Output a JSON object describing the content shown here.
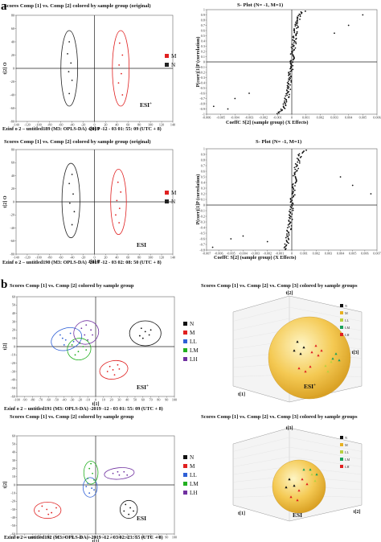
{
  "panel_labels": [
    "a",
    "b"
  ],
  "esi_label": "ESI",
  "chart_data": [
    {
      "type": "scatter",
      "id": "a1",
      "title": "Scores Comp [1] vs. Comp [2] colored by sample group (original)",
      "caption": "Ezinf o 2 – untitled189 (M3: OPLS-DA) -2019 -12 - 03 01: 55: 09 (UTC + 8)",
      "xlabel": "t[1] P",
      "ylabel": "t[2] O",
      "esi": "ESI+",
      "xlim": [
        -140,
        140
      ],
      "ylim": [
        -80,
        80
      ],
      "xticks": [
        -140,
        -120,
        -100,
        -80,
        -60,
        -40,
        -20,
        0,
        20,
        40,
        60,
        80,
        100,
        120,
        140
      ],
      "yticks": [
        -80,
        -60,
        -40,
        -20,
        0,
        20,
        40,
        60,
        80
      ],
      "legend": [
        "M",
        "N"
      ],
      "series": [
        {
          "name": "M",
          "color": "#e02020",
          "points": [
            [
              45,
              38
            ],
            [
              50,
              20
            ],
            [
              44,
              5
            ],
            [
              48,
              -8
            ],
            [
              43,
              -22
            ],
            [
              50,
              -40
            ]
          ]
        },
        {
          "name": "N",
          "color": "#222222",
          "points": [
            [
              -45,
              40
            ],
            [
              -48,
              22
            ],
            [
              -42,
              8
            ],
            [
              -46,
              -5
            ],
            [
              -40,
              -18
            ],
            [
              -45,
              -38
            ]
          ]
        }
      ],
      "ellipses": [
        {
          "color": "#e02020",
          "cx": 47,
          "cy": 0,
          "rx": 15,
          "ry": 57
        },
        {
          "color": "#222222",
          "cx": -45,
          "cy": 0,
          "rx": 15,
          "ry": 57
        }
      ]
    },
    {
      "type": "scatter",
      "id": "a2",
      "title": "S- Plot (N= -1, M=1)",
      "caption": "CoeffC S[2] (sample group) (X Effects)",
      "xlabel": "",
      "ylabel": "P(corr)[1]P (correlation)",
      "xlim": [
        -0.006,
        0.006
      ],
      "ylim": [
        -1,
        1
      ],
      "xticks": [
        -0.006,
        -0.005,
        -0.004,
        -0.003,
        -0.002,
        -0.001,
        0,
        0.001,
        0.002,
        0.003,
        0.004,
        0.005,
        0.006
      ],
      "yticks": [
        -1,
        -0.9,
        -0.8,
        -0.7,
        -0.6,
        -0.5,
        -0.4,
        -0.3,
        -0.2,
        -0.1,
        0,
        0.1,
        0.2,
        0.3,
        0.4,
        0.5,
        0.6,
        0.7,
        0.8,
        0.9,
        1
      ],
      "curve": {
        "k": 0.0012,
        "n": 140
      },
      "series": [
        {
          "color": "#111111",
          "points": [
            [
              -0.0055,
              -0.85
            ],
            [
              -0.0045,
              -0.9
            ],
            [
              -0.004,
              -0.7
            ],
            [
              -0.003,
              -0.6
            ],
            [
              0.003,
              0.55
            ],
            [
              0.004,
              0.7
            ],
            [
              0.005,
              0.9
            ]
          ]
        }
      ]
    },
    {
      "type": "scatter",
      "id": "a3",
      "title": "Scores Comp [1] vs. Comp [2] colored by sample group (original)",
      "caption": "Ezinf o 2 – untitled190 (M3: OPLS-DA) -2019 -12 - 03 02: 08: 50 (UTC + 8)",
      "xlabel": "t[1] P",
      "ylabel": "t[2] O",
      "esi": "ESI",
      "xlim": [
        -140,
        140
      ],
      "ylim": [
        -80,
        80
      ],
      "xticks": [
        -140,
        -120,
        -100,
        -80,
        -60,
        -40,
        -20,
        0,
        20,
        40,
        60,
        80,
        100,
        120,
        140
      ],
      "yticks": [
        -80,
        -60,
        -40,
        -20,
        0,
        20,
        40,
        60,
        80
      ],
      "legend": [
        "M",
        "N"
      ],
      "series": [
        {
          "name": "M",
          "color": "#e02020",
          "points": [
            [
              42,
              30
            ],
            [
              47,
              15
            ],
            [
              40,
              2
            ],
            [
              45,
              -10
            ],
            [
              38,
              -20
            ],
            [
              44,
              -32
            ]
          ]
        },
        {
          "name": "N",
          "color": "#222222",
          "points": [
            [
              -40,
              42
            ],
            [
              -45,
              28
            ],
            [
              -38,
              12
            ],
            [
              -44,
              -2
            ],
            [
              -36,
              -15
            ],
            [
              -40,
              -35
            ]
          ]
        }
      ],
      "ellipses": [
        {
          "color": "#e02020",
          "cx": 43,
          "cy": 0,
          "rx": 14,
          "ry": 50
        },
        {
          "color": "#222222",
          "cx": -42,
          "cy": 2,
          "rx": 16,
          "ry": 57
        }
      ]
    },
    {
      "type": "scatter",
      "id": "a4",
      "title": "S- Plot (N= -1, M=1)",
      "caption": "CoeffC S[2] (sample group) (X Effects)",
      "xlabel": "",
      "ylabel": "P(corr)[1]P (correlation)",
      "xlim": [
        -0.007,
        0.007
      ],
      "ylim": [
        -0.8,
        1
      ],
      "xticks": [
        -0.007,
        -0.006,
        -0.005,
        -0.004,
        -0.003,
        -0.002,
        -0.001,
        0,
        0.001,
        0.002,
        0.003,
        0.004,
        0.005,
        0.006,
        0.007
      ],
      "yticks": [
        -0.8,
        -0.7,
        -0.6,
        -0.5,
        -0.4,
        -0.3,
        -0.2,
        -0.1,
        0,
        0.1,
        0.2,
        0.3,
        0.4,
        0.5,
        0.6,
        0.7,
        0.8,
        0.9,
        1
      ],
      "curve": {
        "k": 0.0014,
        "n": 110
      },
      "series": [
        {
          "color": "#111111",
          "points": [
            [
              -0.0065,
              -0.75
            ],
            [
              -0.005,
              -0.6
            ],
            [
              -0.004,
              -0.55
            ],
            [
              -0.002,
              -0.65
            ],
            [
              0.004,
              0.5
            ],
            [
              0.005,
              0.35
            ],
            [
              0.0065,
              0.2
            ]
          ]
        }
      ]
    },
    {
      "type": "scatter",
      "id": "b1",
      "title": "Scores Comp [1] vs. Comp [2] colored by sample group",
      "caption": "Ezinf o 2 – untitled191 (M3: OPLS-DA) -2019 -12 - 03 01: 55: 09 (UTC + 8)",
      "xlabel": "t[1]",
      "ylabel": "t[2]",
      "esi": "ESI+",
      "xlim": [
        -100,
        100
      ],
      "ylim": [
        -60,
        60
      ],
      "xticks": [
        -100,
        -90,
        -80,
        -70,
        -60,
        -50,
        -40,
        -30,
        -20,
        -10,
        0,
        10,
        20,
        30,
        40,
        50,
        60,
        70,
        80,
        90,
        100
      ],
      "yticks": [
        -60,
        -50,
        -40,
        -30,
        -20,
        -10,
        0,
        10,
        20,
        30,
        40,
        50,
        60
      ],
      "legend": [
        "N",
        "M",
        "LL",
        "LM",
        "LH"
      ],
      "series": [
        {
          "name": "N",
          "color": "#111111",
          "points": [
            [
              58,
              22
            ],
            [
              63,
              18
            ],
            [
              68,
              14
            ],
            [
              56,
              13
            ],
            [
              70,
              20
            ],
            [
              60,
              10
            ]
          ]
        },
        {
          "name": "M",
          "color": "#e02020",
          "points": [
            [
              18,
              -24
            ],
            [
              22,
              -28
            ],
            [
              28,
              -22
            ],
            [
              15,
              -30
            ],
            [
              24,
              -34
            ],
            [
              30,
              -27
            ]
          ]
        },
        {
          "name": "LL",
          "color": "#2e5fd6",
          "points": [
            [
              -45,
              14
            ],
            [
              -38,
              8
            ],
            [
              -32,
              16
            ],
            [
              -40,
              2
            ],
            [
              -28,
              6
            ],
            [
              -42,
              10
            ]
          ]
        },
        {
          "name": "LM",
          "color": "#22b020",
          "points": [
            [
              -30,
              2
            ],
            [
              -22,
              -6
            ],
            [
              -16,
              0
            ],
            [
              -26,
              -10
            ],
            [
              -12,
              -4
            ],
            [
              -20,
              4
            ]
          ]
        },
        {
          "name": "LH",
          "color": "#7030a0",
          "points": [
            [
              -18,
              22
            ],
            [
              -12,
              26
            ],
            [
              -6,
              20
            ],
            [
              -14,
              14
            ],
            [
              -4,
              14
            ],
            [
              -10,
              8
            ]
          ]
        }
      ],
      "ellipses": [
        {
          "color": "#111111",
          "cx": 63,
          "cy": 16,
          "rx": 20,
          "ry": 15,
          "rot": 0
        },
        {
          "color": "#e02020",
          "cx": 23,
          "cy": -28,
          "rx": 18,
          "ry": 11,
          "rot": -10
        },
        {
          "color": "#2e5fd6",
          "cx": -37,
          "cy": 9,
          "rx": 20,
          "ry": 13,
          "rot": -20
        },
        {
          "color": "#22b020",
          "cx": -21,
          "cy": -3,
          "rx": 15,
          "ry": 13,
          "rot": -15
        },
        {
          "color": "#7030a0",
          "cx": -12,
          "cy": 17,
          "rx": 16,
          "ry": 14,
          "rot": -25
        }
      ]
    },
    {
      "type": "scatter",
      "id": "b2",
      "title": "Scores Comp [1] vs. Comp [2] colored by sample group",
      "caption": "Ezinf o 2 – untitled192 (M3: OPLS-DA) -2019 -12 - 03 02: 23: 55 (UTC + 8)",
      "xlabel": "t[1]",
      "ylabel": "t[2]",
      "esi": "ESI",
      "xlim": [
        -100,
        100
      ],
      "ylim": [
        -60,
        60
      ],
      "xticks": [
        -100,
        -90,
        -80,
        -70,
        -60,
        -50,
        -40,
        -30,
        -20,
        -10,
        0,
        10,
        20,
        30,
        40,
        50,
        60,
        70,
        80,
        90,
        100
      ],
      "yticks": [
        -60,
        -50,
        -40,
        -30,
        -20,
        -10,
        0,
        10,
        20,
        30,
        40,
        50,
        60
      ],
      "legend": [
        "N",
        "M",
        "LL",
        "LM",
        "LH"
      ],
      "series": [
        {
          "name": "N",
          "color": "#111111",
          "points": [
            [
              38,
              -24
            ],
            [
              44,
              -28
            ],
            [
              48,
              -32
            ],
            [
              36,
              -32
            ],
            [
              42,
              -36
            ]
          ]
        },
        {
          "name": "M",
          "color": "#e02020",
          "points": [
            [
              -68,
              -26
            ],
            [
              -62,
              -30
            ],
            [
              -56,
              -34
            ],
            [
              -50,
              -28
            ],
            [
              -72,
              -32
            ],
            [
              -60,
              -36
            ]
          ]
        },
        {
          "name": "LL",
          "color": "#2e5fd6",
          "points": [
            [
              -10,
              2
            ],
            [
              -5,
              -4
            ],
            [
              -8,
              -10
            ],
            [
              -2,
              -6
            ],
            [
              -12,
              -2
            ]
          ]
        },
        {
          "name": "LM",
          "color": "#22b020",
          "points": [
            [
              -8,
              20
            ],
            [
              -4,
              14
            ],
            [
              -10,
              8
            ],
            [
              -2,
              6
            ],
            [
              -6,
              26
            ]
          ]
        },
        {
          "name": "LH",
          "color": "#7030a0",
          "points": [
            [
              22,
              14
            ],
            [
              30,
              12
            ],
            [
              36,
              16
            ],
            [
              40,
              12
            ],
            [
              28,
              16
            ]
          ]
        }
      ],
      "ellipses": [
        {
          "color": "#111111",
          "cx": 42,
          "cy": -30,
          "rx": 11,
          "ry": 11,
          "rot": 0
        },
        {
          "color": "#e02020",
          "cx": -61,
          "cy": -31,
          "rx": 17,
          "ry": 10,
          "rot": 0
        },
        {
          "color": "#2e5fd6",
          "cx": -7,
          "cy": -3,
          "rx": 9,
          "ry": 12,
          "rot": 0
        },
        {
          "color": "#22b020",
          "cx": -6,
          "cy": 15,
          "rx": 9,
          "ry": 14,
          "rot": 0
        },
        {
          "color": "#7030a0",
          "cx": 30,
          "cy": 14,
          "rx": 19,
          "ry": 7,
          "rot": -5
        }
      ]
    },
    {
      "type": "scatter3d",
      "id": "b3",
      "title": "Scores Comp [1] vs. Comp [2] vs. Comp [3] colored by sample groups",
      "axis_labels": [
        "t[1]",
        "t[2]",
        "t[3]"
      ],
      "esi": "ESI+",
      "legend": [
        "N",
        "M",
        "LL",
        "LM",
        "LH"
      ],
      "legend_colors": [
        "#111111",
        "#e8b020",
        "#b8d040",
        "#1aa05a",
        "#e02020"
      ],
      "sphere": {
        "cx": 385,
        "cy": 445,
        "r": 51
      },
      "series": [
        {
          "name": "N",
          "color": "#111111",
          "points": [
            [
              370,
              425
            ],
            [
              378,
              432
            ],
            [
              366,
              436
            ],
            [
              374,
              440
            ]
          ]
        },
        {
          "name": "M",
          "color": "#e02020",
          "points": [
            [
              393,
              430
            ],
            [
              400,
              436
            ],
            [
              388,
              438
            ],
            [
              396,
              442
            ]
          ]
        },
        {
          "name": "LL",
          "color": "#b8d040",
          "points": [
            [
              405,
              455
            ],
            [
              412,
              450
            ],
            [
              408,
              462
            ]
          ]
        },
        {
          "name": "LM",
          "color": "#1aa05a",
          "points": [
            [
              418,
              440
            ],
            [
              422,
              448
            ],
            [
              414,
              446
            ]
          ]
        },
        {
          "name": "LH",
          "color": "#e02020",
          "points": [
            [
              372,
              458
            ],
            [
              380,
              462
            ],
            [
              386,
              456
            ]
          ]
        }
      ]
    },
    {
      "type": "scatter3d",
      "id": "b4",
      "title": "Scores Comp [1] vs. Comp [2] vs. Comp [3] colored by sample groups",
      "axis_labels": [
        "t[1]",
        "t[2]",
        "t[3]"
      ],
      "esi": "ESI",
      "legend": [
        "N",
        "M",
        "LL",
        "LM",
        "LH"
      ],
      "legend_colors": [
        "#111111",
        "#e8b020",
        "#b8d040",
        "#1aa05a",
        "#e02020"
      ],
      "sphere": {
        "cx": 372,
        "cy": 605,
        "r": 33
      },
      "series": [
        {
          "name": "N",
          "color": "#111111",
          "points": [
            [
              360,
              596
            ],
            [
              366,
              604
            ],
            [
              356,
              606
            ]
          ]
        },
        {
          "name": "M",
          "color": "#e02020",
          "points": [
            [
              376,
              596
            ],
            [
              382,
              602
            ],
            [
              372,
              610
            ]
          ]
        },
        {
          "name": "LL",
          "color": "#b8d040",
          "points": [
            [
              388,
              590
            ],
            [
              392,
              598
            ]
          ]
        },
        {
          "name": "LM",
          "color": "#1aa05a",
          "points": [
            [
              378,
              584
            ],
            [
              386,
              584
            ],
            [
              394,
              590
            ]
          ]
        },
        {
          "name": "LH",
          "color": "#e02020",
          "points": [
            [
              362,
              618
            ],
            [
              370,
              622
            ]
          ]
        }
      ]
    }
  ]
}
